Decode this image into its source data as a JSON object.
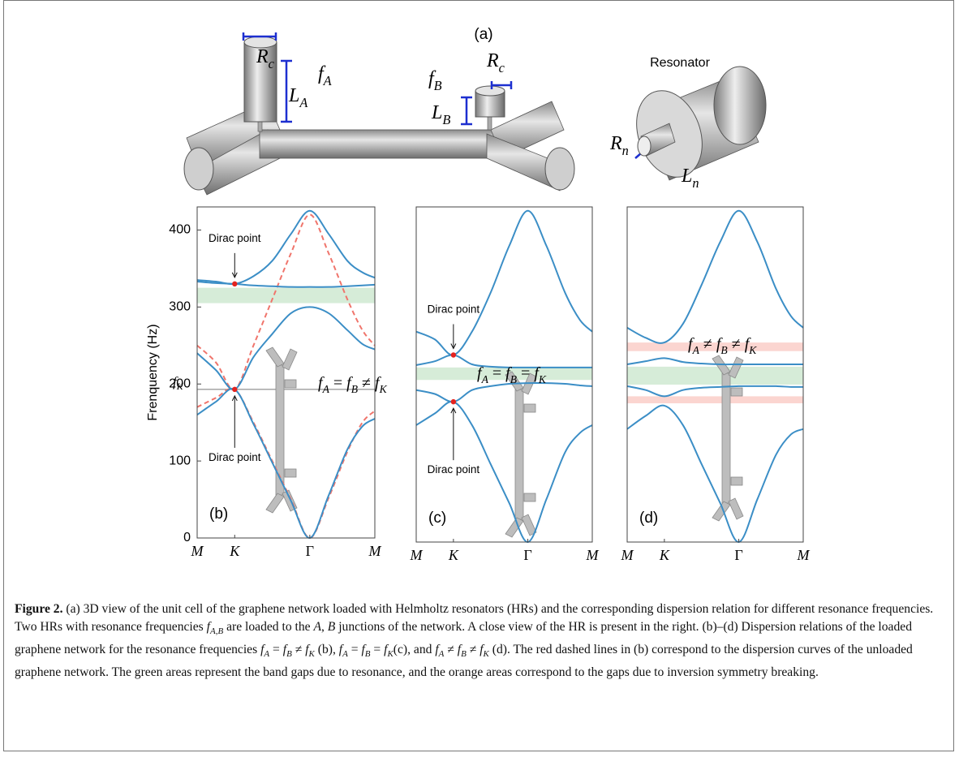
{
  "figure": {
    "panel_a": {
      "label": "(a)",
      "resonator_title": "Resonator",
      "symbols": [
        {
          "base": "R",
          "sub": "c"
        },
        {
          "base": "f",
          "sub": "A"
        },
        {
          "base": "L",
          "sub": "A"
        },
        {
          "base": "f",
          "sub": "B"
        },
        {
          "base": "R",
          "sub": "c"
        },
        {
          "base": "L",
          "sub": "B"
        },
        {
          "base": "R",
          "sub": "n"
        },
        {
          "base": "L",
          "sub": "n"
        }
      ]
    },
    "caption": [
      {
        "bold": "Figure 2."
      },
      " (a) 3D view of the unit cell of the graphene network loaded with Helmholtz resonators (HRs) and the corresponding dispersion relation for different resonance frequencies. Two HRs with resonance frequencies ",
      {
        "base": "f",
        "sub": "A,B"
      },
      " are loaded to the ",
      {
        "italic": "A"
      },
      ", ",
      {
        "italic": "B"
      },
      " junctions of the network. A close view of the HR is present in the right. (b)–(d) Dispersion relations of the loaded graphene network for the resonance frequencies ",
      {
        "base": "f",
        "sub": "A"
      },
      " = ",
      {
        "base": "f",
        "sub": "B"
      },
      " ≠ ",
      {
        "base": "f",
        "sub": "K"
      },
      " (b), ",
      {
        "base": "f",
        "sub": "A"
      },
      " = ",
      {
        "base": "f",
        "sub": "B"
      },
      " = ",
      {
        "base": "f",
        "sub": "K"
      },
      "(c), and ",
      {
        "base": "f",
        "sub": "A"
      },
      " ≠ ",
      {
        "base": "f",
        "sub": "B"
      },
      " ≠ ",
      {
        "base": "f",
        "sub": "K"
      },
      " (d). The red dashed lines in (b) correspond to the dispersion curves of the unloaded graphene network. The green areas represent the band gaps due to resonance, and the orange areas correspond to the gaps due to inversion symmetry breaking."
    ]
  },
  "chart_data": [
    {
      "type": "line",
      "panel_label": "(b)",
      "ylabel": "Frenquency (Hz)",
      "x": [
        0,
        0.25,
        0.5,
        0.75,
        1,
        1.25,
        1.5,
        1.75,
        2,
        2.2,
        2.366
      ],
      "xlim": [
        0,
        2.366
      ],
      "xticks": [
        {
          "value": 0,
          "label": "M"
        },
        {
          "value": 0.5,
          "label": "K"
        },
        {
          "value": 1.5,
          "label": "Γ"
        },
        {
          "value": 2.366,
          "label": "M"
        }
      ],
      "ylim": [
        0,
        430
      ],
      "yticks": [
        0,
        100,
        200,
        300,
        400
      ],
      "shaded": [
        {
          "from": 305,
          "to": 325,
          "color": "#d6ecd8"
        }
      ],
      "hlines": [
        {
          "value": 193,
          "label": {
            "base": "f",
            "sub": "K"
          }
        }
      ],
      "series": [
        {
          "color": "#f0756c",
          "dash": true,
          "values": [
            170,
            182,
            193,
            150,
            100,
            50,
            0,
            52,
            112,
            150,
            165
          ]
        },
        {
          "color": "#f0756c",
          "dash": true,
          "values": [
            250,
            228,
            193,
            250,
            310,
            370,
            420,
            370,
            310,
            270,
            250
          ]
        },
        {
          "color": "#3b8ec6",
          "dash": false,
          "values": [
            160,
            177,
            193,
            148,
            98,
            48,
            0,
            55,
            115,
            145,
            155
          ]
        },
        {
          "color": "#3b8ec6",
          "dash": false,
          "values": [
            240,
            218,
            193,
            235,
            265,
            292,
            300,
            292,
            270,
            252,
            245
          ]
        },
        {
          "color": "#3b8ec6",
          "dash": false,
          "values": [
            333,
            331,
            330,
            328,
            327,
            326,
            326,
            326,
            327,
            328,
            329
          ]
        },
        {
          "color": "#3b8ec6",
          "dash": false,
          "values": [
            335,
            333,
            330,
            340,
            360,
            395,
            425,
            395,
            360,
            345,
            338
          ]
        }
      ],
      "dirac_points": [
        {
          "x": 0.5,
          "y": 330
        },
        {
          "x": 0.5,
          "y": 193
        }
      ],
      "annotations": [
        {
          "text": "Dirac point",
          "x": 0.5,
          "y": 330,
          "position": "above"
        },
        {
          "text": "Dirac point",
          "x": 0.5,
          "y": 193,
          "position": "below"
        }
      ],
      "formula": [
        {
          "base": "f",
          "sub": "A"
        },
        " = ",
        {
          "base": "f",
          "sub": "B"
        },
        " ≠ ",
        {
          "base": "f",
          "sub": "K"
        }
      ]
    },
    {
      "type": "line",
      "panel_label": "(c)",
      "x": [
        0,
        0.25,
        0.5,
        0.75,
        1,
        1.25,
        1.5,
        1.75,
        2,
        2.2,
        2.366
      ],
      "xlim": [
        0,
        2.366
      ],
      "xticks": [
        {
          "value": 0,
          "label": "M"
        },
        {
          "value": 0.5,
          "label": "K"
        },
        {
          "value": 1.5,
          "label": "Γ"
        },
        {
          "value": 2.366,
          "label": "M"
        }
      ],
      "ylim": [
        0,
        430
      ],
      "shaded": [
        {
          "from": 208,
          "to": 224,
          "color": "#d6ecd8"
        }
      ],
      "series": [
        {
          "color": "#3b8ec6",
          "dash": false,
          "values": [
            150,
            165,
            180,
            150,
            100,
            50,
            0,
            55,
            115,
            140,
            150
          ]
        },
        {
          "color": "#3b8ec6",
          "dash": false,
          "values": [
            195,
            190,
            180,
            195,
            200,
            203,
            204,
            204,
            203,
            201,
            200
          ]
        },
        {
          "color": "#3b8ec6",
          "dash": false,
          "values": [
            227,
            232,
            240,
            228,
            225,
            224,
            224,
            224,
            224,
            224,
            224
          ]
        },
        {
          "color": "#3b8ec6",
          "dash": false,
          "values": [
            270,
            260,
            240,
            270,
            320,
            380,
            425,
            380,
            320,
            285,
            270
          ]
        }
      ],
      "dirac_points": [
        {
          "x": 0.5,
          "y": 240
        },
        {
          "x": 0.5,
          "y": 180
        }
      ],
      "annotations": [
        {
          "text": "Dirac point",
          "x": 0.5,
          "y": 240,
          "position": "above"
        },
        {
          "text": "Dirac point",
          "x": 0.5,
          "y": 180,
          "position": "below"
        }
      ],
      "formula": [
        {
          "base": "f",
          "sub": "A"
        },
        " = ",
        {
          "base": "f",
          "sub": "B"
        },
        " = ",
        {
          "base": "f",
          "sub": "K"
        }
      ]
    },
    {
      "type": "line",
      "panel_label": "(d)",
      "x": [
        0,
        0.25,
        0.5,
        0.75,
        1,
        1.25,
        1.5,
        1.75,
        2,
        2.2,
        2.366
      ],
      "xlim": [
        0,
        2.366
      ],
      "xticks": [
        {
          "value": 0,
          "label": "M"
        },
        {
          "value": 0.5,
          "label": "K"
        },
        {
          "value": 1.5,
          "label": "Γ"
        },
        {
          "value": 2.366,
          "label": "M"
        }
      ],
      "ylim": [
        0,
        430
      ],
      "shaded": [
        {
          "from": 245,
          "to": 256,
          "color": "#fbd5d0"
        },
        {
          "from": 202,
          "to": 225,
          "color": "#d6ecd8"
        },
        {
          "from": 178,
          "to": 187,
          "color": "#fbd5d0"
        }
      ],
      "series": [
        {
          "color": "#3b8ec6",
          "dash": false,
          "values": [
            145,
            162,
            175,
            150,
            100,
            50,
            0,
            55,
            112,
            138,
            145
          ]
        },
        {
          "color": "#3b8ec6",
          "dash": false,
          "values": [
            200,
            195,
            187,
            195,
            198,
            199,
            200,
            200,
            200,
            199,
            199
          ]
        },
        {
          "color": "#3b8ec6",
          "dash": false,
          "values": [
            228,
            232,
            236,
            231,
            229,
            228,
            228,
            228,
            228,
            228,
            228
          ]
        },
        {
          "color": "#3b8ec6",
          "dash": false,
          "values": [
            275,
            262,
            256,
            280,
            330,
            385,
            425,
            385,
            325,
            290,
            275
          ]
        }
      ],
      "formula": [
        {
          "base": "f",
          "sub": "A"
        },
        " ≠ ",
        {
          "base": "f",
          "sub": "B"
        },
        " ≠ ",
        {
          "base": "f",
          "sub": "K"
        }
      ]
    }
  ]
}
